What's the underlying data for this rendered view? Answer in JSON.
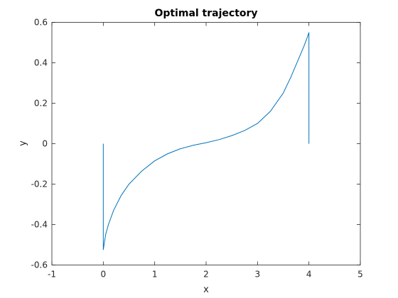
{
  "chart_data": {
    "type": "line",
    "title": "Optimal trajectory",
    "xlabel": "x",
    "ylabel": "y",
    "xlim": [
      -1,
      5
    ],
    "ylim": [
      -0.6,
      0.6
    ],
    "xticks": [
      "-1",
      "0",
      "1",
      "2",
      "3",
      "4",
      "5"
    ],
    "yticks": [
      "-0.6",
      "-0.4",
      "-0.2",
      "0",
      "0.2",
      "0.4",
      "0.6"
    ],
    "grid": false,
    "legend": "none",
    "series": [
      {
        "color": "#0072BD",
        "x": [
          0.0,
          0.0,
          0.02,
          0.05,
          0.1,
          0.2,
          0.35,
          0.5,
          0.75,
          1.0,
          1.25,
          1.5,
          1.75,
          2.0,
          2.25,
          2.5,
          2.75,
          3.0,
          3.25,
          3.5,
          3.65,
          3.8,
          3.9,
          3.96,
          4.0,
          4.0
        ],
        "y": [
          0.0,
          -0.525,
          -0.49,
          -0.445,
          -0.4,
          -0.33,
          -0.255,
          -0.2,
          -0.135,
          -0.085,
          -0.05,
          -0.025,
          -0.008,
          0.005,
          0.02,
          0.04,
          0.065,
          0.1,
          0.16,
          0.25,
          0.33,
          0.42,
          0.48,
          0.52,
          0.55,
          0.0
        ]
      }
    ]
  }
}
